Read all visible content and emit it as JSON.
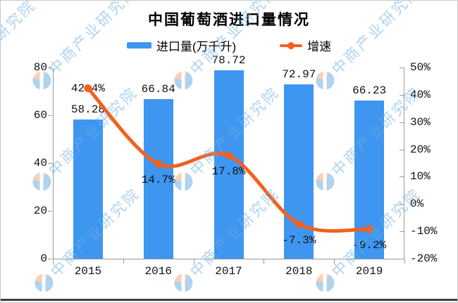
{
  "chart_data": {
    "type": "combo",
    "title": "中国葡萄酒进口量情况",
    "categories": [
      "2015",
      "2016",
      "2017",
      "2018",
      "2019"
    ],
    "series": [
      {
        "name": "进口量(万千升)",
        "type": "bar",
        "yaxis": "left",
        "color": "#3E96F0",
        "values": [
          58.28,
          66.84,
          78.72,
          72.97,
          66.23
        ],
        "labels": [
          "58.28",
          "66.84",
          "78.72",
          "72.97",
          "66.23"
        ]
      },
      {
        "name": "增速",
        "type": "line",
        "yaxis": "right",
        "color": "#F4601E",
        "values": [
          42.4,
          14.7,
          17.8,
          -7.3,
          -9.2
        ],
        "labels": [
          "42.4%",
          "14.7%",
          "17.8%",
          "-7.3%",
          "-9.2%"
        ]
      }
    ],
    "left_axis": {
      "min": 0,
      "max": 80,
      "tick_labels": [
        "80",
        "60",
        "40",
        "20",
        "0"
      ]
    },
    "right_axis": {
      "min": -20,
      "max": 50,
      "tick_labels": [
        "50%",
        "40%",
        "30%",
        "20%",
        "10%",
        "0%",
        "-10%",
        "-20%"
      ]
    },
    "grid": false,
    "legend_position": "top",
    "axis_color": "#999999"
  },
  "watermark": {
    "text": "中商产业研究院",
    "blue": "rgba(110,175,225,0.55)",
    "peach": "rgba(246,166,122,0.55)"
  }
}
